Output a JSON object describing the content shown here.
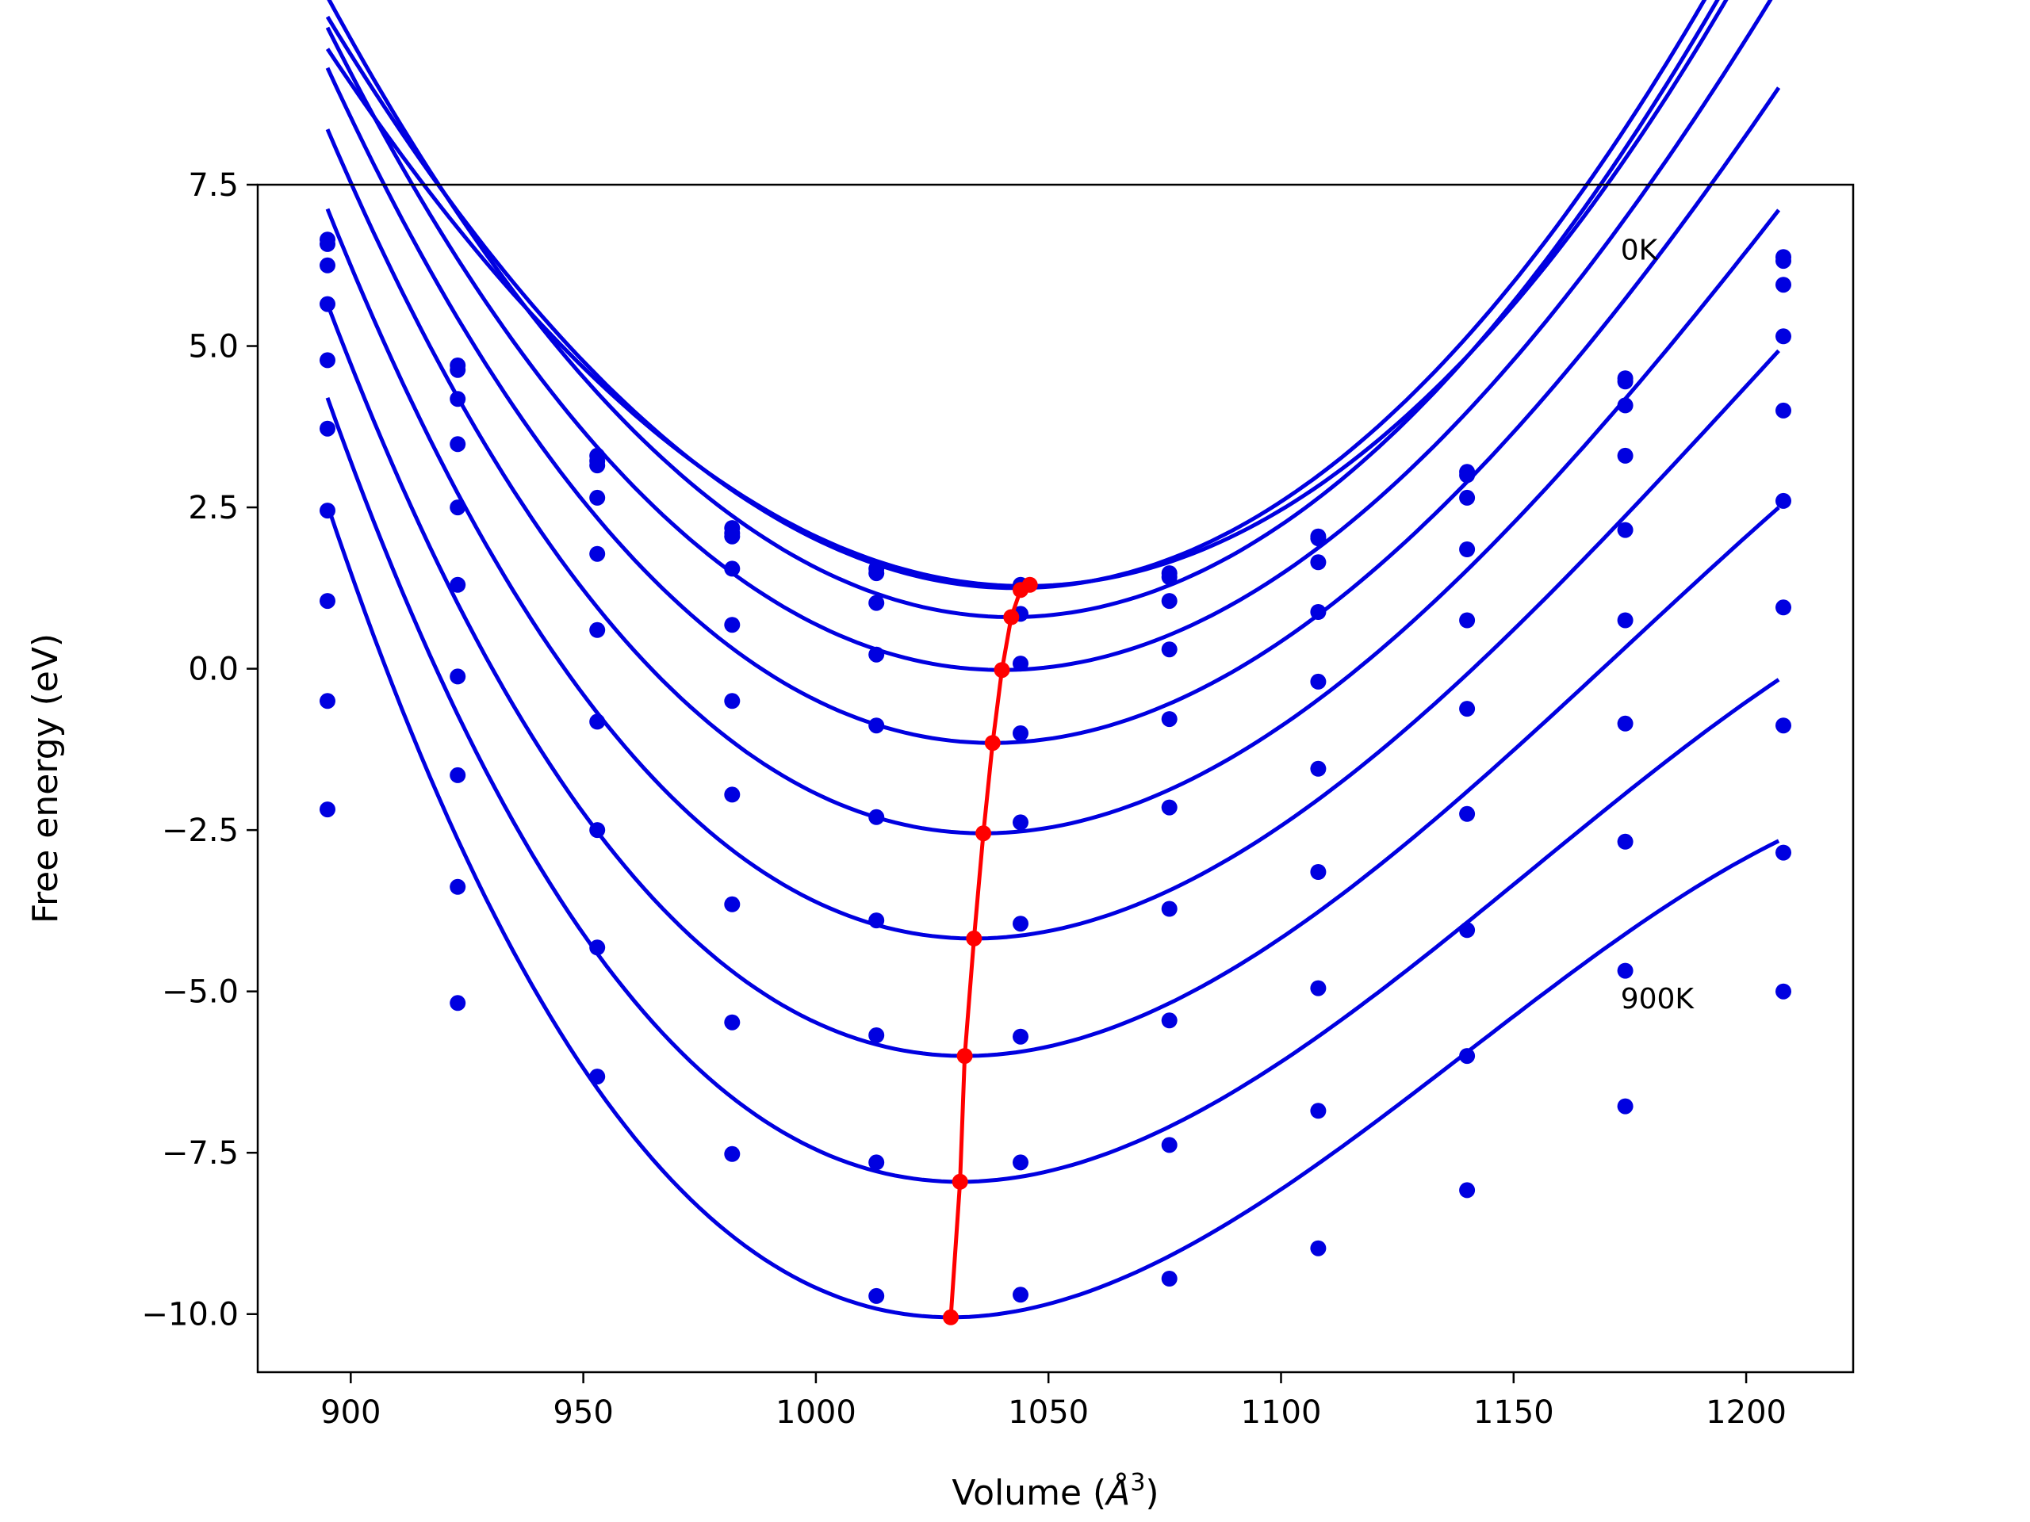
{
  "chart_data": {
    "type": "line",
    "title": "",
    "xlabel": "Volume",
    "xlabel_unit": "Å",
    "xlabel_unit_exp": "3",
    "ylabel": "Free energy (eV)",
    "xlim": [
      880,
      1223
    ],
    "ylim": [
      -10.9,
      7.5
    ],
    "xticks": [
      900,
      950,
      1000,
      1050,
      1100,
      1150,
      1200
    ],
    "yticks": [
      7.5,
      5.0,
      2.5,
      0.0,
      -2.5,
      -5.0,
      -7.5,
      -10.0
    ],
    "ytick_labels": [
      "7.5",
      "5.0",
      "2.5",
      "0.0",
      "−2.5",
      "−5.0",
      "−7.5",
      "−10.0"
    ],
    "grid": false,
    "colors": {
      "curves": "#0000e0",
      "min_path": "#ff0000"
    },
    "annotations": [
      {
        "text": "0K",
        "x": 1173,
        "y": 6.5
      },
      {
        "text": "900K",
        "x": 1173,
        "y": -5.1
      }
    ],
    "volumes": [
      895,
      923,
      953,
      982,
      1013,
      1044,
      1076,
      1108,
      1140,
      1174,
      1208
    ],
    "series": [
      {
        "points": [
          6.65,
          4.7,
          3.3,
          2.18,
          1.55,
          1.3,
          1.48,
          2.05,
          3.05,
          4.5,
          6.38
        ]
      },
      {
        "points": [
          6.58,
          4.63,
          3.22,
          2.1,
          1.48,
          1.25,
          1.42,
          2.02,
          3.0,
          4.45,
          6.32
        ]
      },
      {
        "points": [
          6.25,
          4.18,
          3.15,
          2.05,
          1.02,
          0.85,
          1.05,
          1.65,
          2.65,
          4.08,
          5.95
        ]
      },
      {
        "points": [
          5.65,
          3.48,
          2.65,
          1.55,
          0.22,
          0.08,
          0.3,
          0.88,
          1.85,
          3.3,
          5.15
        ]
      },
      {
        "points": [
          4.78,
          2.5,
          1.78,
          0.68,
          -0.88,
          -1.0,
          -0.78,
          -0.2,
          0.75,
          2.15,
          4.0
        ]
      },
      {
        "points": [
          3.72,
          1.3,
          0.6,
          -0.5,
          -2.3,
          -2.38,
          -2.15,
          -1.55,
          -0.62,
          0.75,
          2.6
        ]
      },
      {
        "points": [
          2.45,
          -0.12,
          -0.82,
          -1.95,
          -3.9,
          -3.95,
          -3.72,
          -3.15,
          -2.25,
          -0.85,
          0.95
        ]
      },
      {
        "points": [
          1.05,
          -1.65,
          -2.5,
          -3.65,
          -5.68,
          -5.7,
          -5.45,
          -4.95,
          -4.05,
          -2.68,
          -0.88
        ]
      },
      {
        "points": [
          -0.5,
          -3.38,
          -4.32,
          -5.48,
          -7.65,
          -7.65,
          -7.38,
          -6.85,
          -6.0,
          -4.68,
          -2.85
        ]
      },
      {
        "points": [
          -2.18,
          -5.18,
          -6.32,
          -7.52,
          -9.72,
          -9.7,
          -9.45,
          -8.98,
          -8.08,
          -6.78,
          -5.0
        ]
      }
    ],
    "fits": [
      {
        "vmin": 1043,
        "fmin": 1.25,
        "k": 0.00041,
        "c": 4e-08
      },
      {
        "vmin": 1045,
        "fmin": 1.28,
        "k": 0.000385,
        "c": 1e-07
      },
      {
        "vmin": 1042,
        "fmin": 0.8,
        "k": 0.00043,
        "c": -1e-07
      },
      {
        "vmin": 1040,
        "fmin": -0.02,
        "k": 0.00043,
        "c": -3e-07
      },
      {
        "vmin": 1038,
        "fmin": -1.15,
        "k": 0.00044,
        "c": -5e-07
      },
      {
        "vmin": 1036,
        "fmin": -2.55,
        "k": 0.00045,
        "c": -7e-07
      },
      {
        "vmin": 1034,
        "fmin": -4.18,
        "k": 0.00046,
        "c": -9e-07
      },
      {
        "vmin": 1032,
        "fmin": -6.0,
        "k": 0.00047,
        "c": -1.1e-06
      },
      {
        "vmin": 1031,
        "fmin": -7.95,
        "k": 0.00048,
        "c": -1.3e-06
      },
      {
        "vmin": 1029,
        "fmin": -10.05,
        "k": 0.0005,
        "c": -1.5e-06
      }
    ],
    "fit_range": [
      895,
      1208
    ],
    "min_path": {
      "x": [
        1046,
        1044,
        1042,
        1040,
        1038,
        1036,
        1034,
        1032,
        1031,
        1029
      ],
      "y": [
        1.3,
        1.22,
        0.8,
        -0.02,
        -1.15,
        -2.55,
        -4.18,
        -6.0,
        -7.95,
        -10.05
      ]
    }
  }
}
